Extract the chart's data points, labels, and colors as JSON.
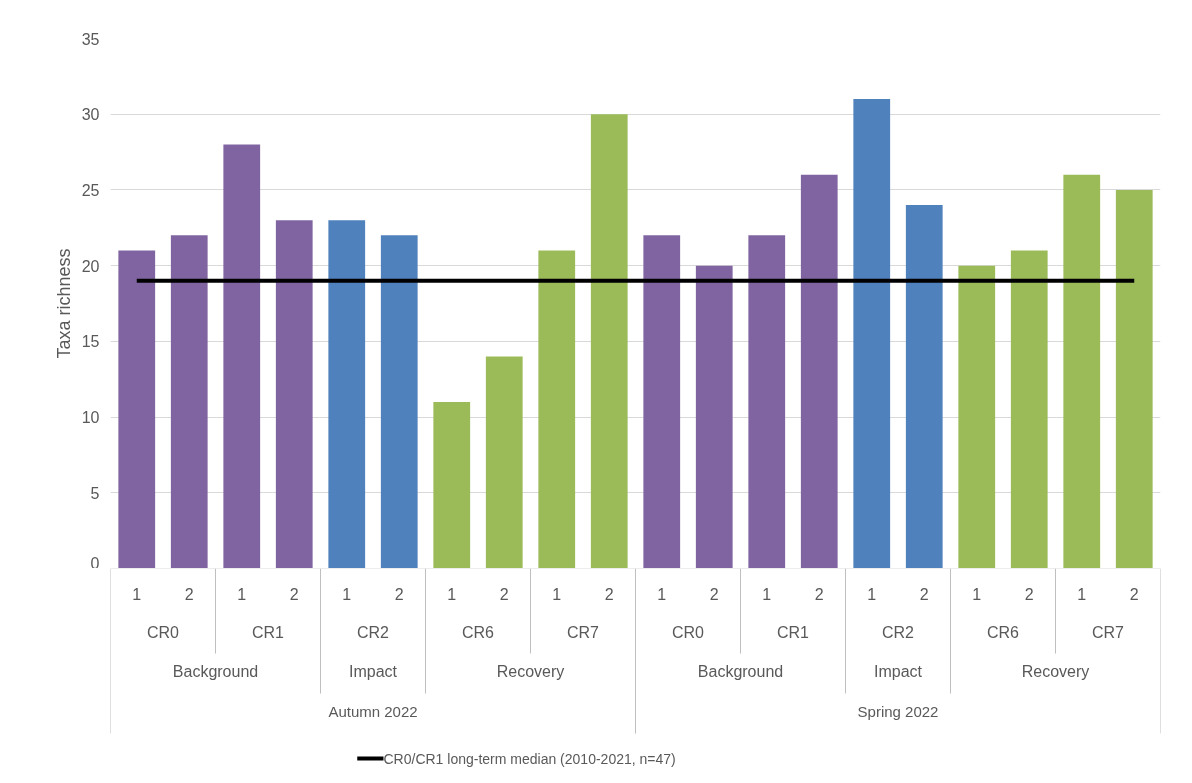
{
  "chart_data": {
    "type": "bar",
    "ylabel": "Taxa richness",
    "categories": [
      "1",
      "2",
      "1",
      "2",
      "1",
      "2",
      "1",
      "2",
      "1",
      "2",
      "1",
      "2",
      "1",
      "2",
      "1",
      "2",
      "1",
      "2",
      "1",
      "2"
    ],
    "annotations": [
      "CR0",
      "CR1",
      "CR2",
      "CR6",
      "CR7",
      "CR0",
      "CR1",
      "CR2",
      "CR6",
      "CR7",
      "Background",
      "Impact",
      "Recovery",
      "Background",
      "Impact",
      "Recovery",
      "Autumn 2022",
      "Spring 2022"
    ],
    "series": [
      {
        "values": [
          21,
          22,
          28,
          23,
          23,
          22,
          11,
          14,
          21,
          30,
          22,
          20,
          22,
          26,
          31,
          24,
          20,
          21,
          26,
          25
        ],
        "colors": [
          "#8064a2",
          "#8064a2",
          "#8064a2",
          "#8064a2",
          "#4f81bd",
          "#4f81bd",
          "#9bbb59",
          "#9bbb59",
          "#9bbb59",
          "#9bbb59",
          "#8064a2",
          "#8064a2",
          "#8064a2",
          "#8064a2",
          "#4f81bd",
          "#4f81bd",
          "#9bbb59",
          "#9bbb59",
          "#9bbb59",
          "#9bbb59"
        ]
      },
      {
        "type": "line",
        "name": "CR0/CR1 long-term median (2010-2021, n=47)",
        "color": "#000000",
        "values": [
          19,
          19,
          19,
          19,
          19,
          19,
          19,
          19,
          19,
          19,
          19,
          19,
          19,
          19,
          19,
          19,
          19,
          19,
          19,
          19
        ]
      }
    ],
    "ylim": [
      0,
      35
    ],
    "yticks": [
      0,
      5,
      10,
      15,
      20,
      25,
      30,
      35
    ],
    "grid": "y",
    "legend": "bottom"
  }
}
